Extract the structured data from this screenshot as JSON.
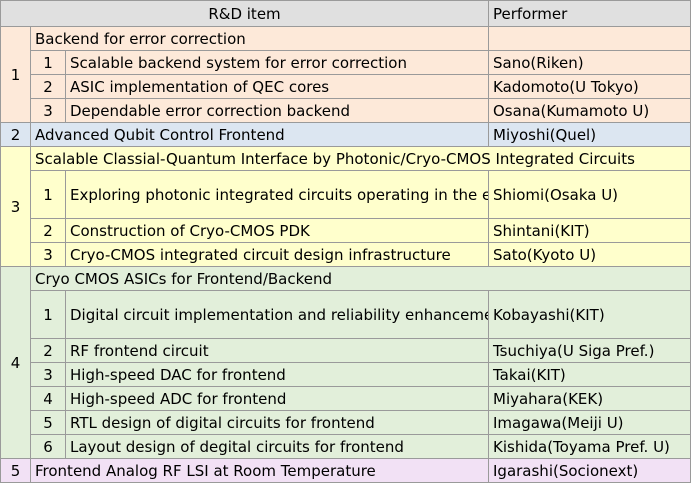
{
  "header": {
    "item": "R&D item",
    "performer": "Performer"
  },
  "groups": [
    {
      "num": "1",
      "title": "Backend for error correction",
      "performer": "",
      "items": [
        {
          "num": "1",
          "title": "Scalable backend system for error correction",
          "performer": "Sano(Riken)"
        },
        {
          "num": "2",
          "title": "ASIC implementation of QEC cores",
          "performer": "Kadomoto(U Tokyo)"
        },
        {
          "num": "3",
          "title": "Dependable error correction backend",
          "performer": "Osana(Kumamoto U)"
        }
      ]
    },
    {
      "num": "2",
      "title": "Advanced Qubit Control Frontend",
      "performer": "Miyoshi(Quel)",
      "items": []
    },
    {
      "num": "3",
      "title": "Scalable Classial-Quantum Interface by Photonic/Cryo-CMOS Integrated Circuits",
      "performer": "",
      "items": [
        {
          "num": "1",
          "title": "Exploring photonic integrated circuits operating in the extremely low-temperature environment",
          "performer": "Shiomi(Osaka U)"
        },
        {
          "num": "2",
          "title": "Construction of Cryo-CMOS PDK",
          "performer": "Shintani(KIT)"
        },
        {
          "num": "3",
          "title": "Cryo-CMOS integrated circuit design infrastructure",
          "performer": "Sato(Kyoto U)"
        }
      ]
    },
    {
      "num": "4",
      "title": "Cryo CMOS ASICs for Frontend/Backend",
      "performer": "",
      "items": [
        {
          "num": "1",
          "title": "Digital circuit implementation and reliability enhancement techniques",
          "performer": "Kobayashi(KIT)"
        },
        {
          "num": "2",
          "title": "RF frontend circuit",
          "performer": "Tsuchiya(U Siga Pref.)"
        },
        {
          "num": "3",
          "title": "High-speed DAC for frontend",
          "performer": "Takai(KIT)"
        },
        {
          "num": "4",
          "title": "High-speed ADC for frontend",
          "performer": "Miyahara(KEK)"
        },
        {
          "num": "5",
          "title": "RTL design of digital circuits for frontend",
          "performer": "Imagawa(Meiji U)"
        },
        {
          "num": "6",
          "title": "Layout design of degital circuits for frontend",
          "performer": "Kishida(Toyama Pref. U)"
        }
      ]
    },
    {
      "num": "5",
      "title": "Frontend Analog RF LSI at Room Temperature",
      "performer": "Igarashi(Socionext)",
      "items": []
    }
  ]
}
